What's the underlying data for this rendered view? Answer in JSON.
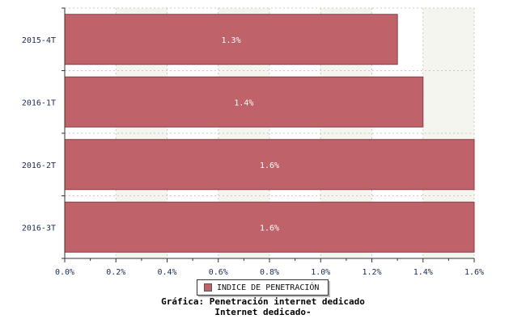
{
  "chart_data": {
    "type": "bar",
    "orientation": "horizontal",
    "categories": [
      "2015-4T",
      "2016-1T",
      "2016-2T",
      "2016-3T"
    ],
    "series": [
      {
        "name": "INDICE DE PENETRACIÓN",
        "values": [
          1.3,
          1.4,
          1.6,
          1.6
        ]
      }
    ],
    "value_labels": [
      "1.3%",
      "1.4%",
      "1.6%",
      "1.6%"
    ],
    "xlim": [
      0,
      1.6
    ],
    "xticks": [
      "0.0%",
      "0.2%",
      "0.4%",
      "0.6%",
      "0.8%",
      "1.0%",
      "1.2%",
      "1.4%",
      "1.6%"
    ],
    "grid": true,
    "legend_position": "bottom",
    "bar_color": "#c0626a"
  },
  "captions": {
    "line1": "Gráfica: Penetración internet dedicado",
    "line2": "Internet dedicado-"
  }
}
